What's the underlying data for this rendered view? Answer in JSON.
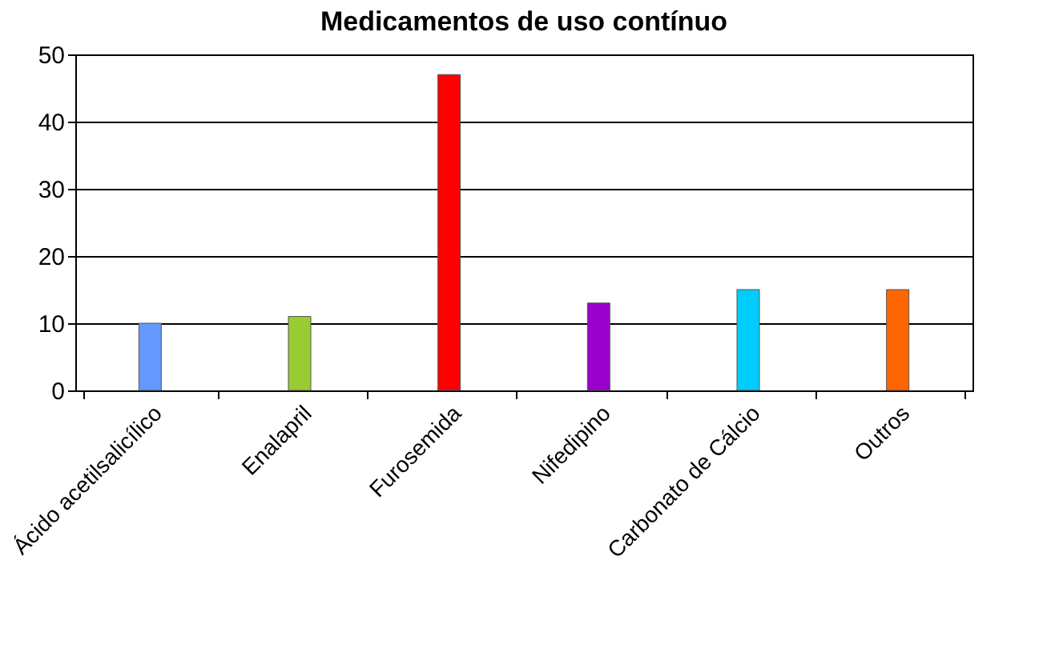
{
  "chart_data": {
    "type": "bar",
    "title": "Medicamentos de uso contínuo",
    "categories": [
      "Ácido acetilsalicílico",
      "Enalapril",
      "Furosemida",
      "Nifedipino",
      "Carbonato de Cálcio",
      "Outros"
    ],
    "values": [
      10,
      11,
      47,
      13,
      15,
      15
    ],
    "colors": [
      "#6699ff",
      "#99cc33",
      "#ff0000",
      "#9900cc",
      "#00ccff",
      "#ff6600"
    ],
    "ylim": [
      0,
      50
    ],
    "yticks": [
      0,
      10,
      20,
      30,
      40,
      50
    ],
    "grid": "y",
    "legend": false
  }
}
